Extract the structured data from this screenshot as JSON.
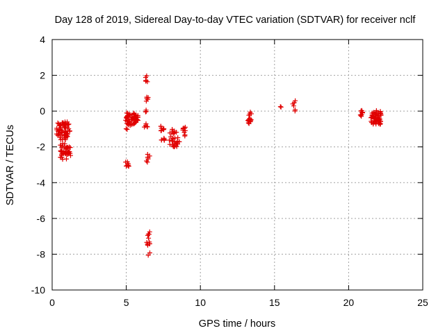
{
  "chart_data": {
    "type": "scatter",
    "title": "Day 128 of 2019, Sidereal Day-to-day VTEC variation (SDTVAR) for receiver nclf",
    "xlabel": "GPS time / hours",
    "ylabel": "SDTVAR / TECUs",
    "xlim": [
      0,
      25
    ],
    "ylim": [
      -10,
      4
    ],
    "xticks": [
      0,
      5,
      10,
      15,
      20,
      25
    ],
    "yticks": [
      -10,
      -8,
      -6,
      -4,
      -2,
      0,
      2,
      4
    ],
    "xtick_labels": [
      "0",
      "5",
      "10",
      "15",
      "20",
      "25"
    ],
    "ytick_labels": [
      "-10",
      "-8",
      "-6",
      "-4",
      "-2",
      "0",
      "2",
      "4"
    ],
    "grid": true,
    "marker": "+",
    "marker_color": "#e00000",
    "clusters": [
      {
        "x": [
          0.3,
          1.2
        ],
        "y": [
          -1.6,
          -0.6
        ],
        "n": 70
      },
      {
        "x": [
          0.5,
          1.1
        ],
        "y": [
          -2.7,
          -1.8
        ],
        "n": 30
      },
      {
        "x": [
          0.9,
          1.25
        ],
        "y": [
          -2.5,
          -2.0
        ],
        "n": 14
      },
      {
        "x": [
          4.95,
          5.15
        ],
        "y": [
          -1.1,
          -0.2
        ],
        "n": 10
      },
      {
        "x": [
          5.0,
          5.8
        ],
        "y": [
          -0.8,
          -0.1
        ],
        "n": 50
      },
      {
        "x": [
          4.95,
          5.25
        ],
        "y": [
          -3.1,
          -2.8
        ],
        "n": 8
      },
      {
        "x": [
          6.3,
          6.45
        ],
        "y": [
          1.6,
          2.0
        ],
        "n": 6
      },
      {
        "x": [
          6.35,
          6.5
        ],
        "y": [
          0.5,
          0.9
        ],
        "n": 5
      },
      {
        "x": [
          6.3,
          6.45
        ],
        "y": [
          -0.1,
          0.1
        ],
        "n": 3
      },
      {
        "x": [
          6.2,
          6.45
        ],
        "y": [
          -0.9,
          -0.7
        ],
        "n": 5
      },
      {
        "x": [
          6.35,
          6.6
        ],
        "y": [
          -2.9,
          -2.4
        ],
        "n": 7
      },
      {
        "x": [
          6.35,
          6.6
        ],
        "y": [
          -8.1,
          -6.7
        ],
        "n": 14
      },
      {
        "x": [
          7.3,
          7.55
        ],
        "y": [
          -1.1,
          -0.8
        ],
        "n": 8
      },
      {
        "x": [
          7.3,
          7.65
        ],
        "y": [
          -1.7,
          -1.5
        ],
        "n": 6
      },
      {
        "x": [
          7.9,
          8.5
        ],
        "y": [
          -2.0,
          -1.0
        ],
        "n": 30
      },
      {
        "x": [
          8.5,
          8.6
        ],
        "y": [
          -1.8,
          -1.7
        ],
        "n": 2
      },
      {
        "x": [
          8.8,
          9.0
        ],
        "y": [
          -1.4,
          -0.9
        ],
        "n": 10
      },
      {
        "x": [
          13.2,
          13.45
        ],
        "y": [
          -0.8,
          0.1
        ],
        "n": 14
      },
      {
        "x": [
          15.35,
          15.45
        ],
        "y": [
          0.1,
          0.25
        ],
        "n": 2
      },
      {
        "x": [
          16.2,
          16.4
        ],
        "y": [
          0.0,
          0.6
        ],
        "n": 6
      },
      {
        "x": [
          20.75,
          20.95
        ],
        "y": [
          -0.35,
          0.05
        ],
        "n": 10
      },
      {
        "x": [
          21.5,
          22.2
        ],
        "y": [
          -0.75,
          0.05
        ],
        "n": 55
      }
    ]
  }
}
